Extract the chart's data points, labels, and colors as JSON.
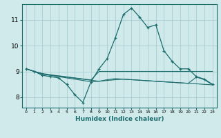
{
  "xlabel": "Humidex (Indice chaleur)",
  "ylabel": "",
  "bg_color": "#d0eaec",
  "grid_color": "#a0c8cc",
  "line_color": "#1a6b6b",
  "xlim": [
    -0.5,
    23.5
  ],
  "ylim": [
    7.6,
    11.6
  ],
  "yticks": [
    8,
    9,
    10,
    11
  ],
  "xticks": [
    0,
    1,
    2,
    3,
    4,
    5,
    6,
    7,
    8,
    9,
    10,
    11,
    12,
    13,
    14,
    15,
    16,
    17,
    18,
    19,
    20,
    21,
    22,
    23
  ],
  "lines": [
    {
      "x": [
        0,
        1,
        2,
        3,
        4,
        5,
        6,
        7,
        8,
        9,
        10,
        11,
        12,
        13,
        14,
        15,
        16,
        17,
        18,
        19,
        20,
        21,
        22,
        23
      ],
      "y": [
        9.1,
        9.0,
        8.9,
        8.85,
        8.8,
        8.75,
        8.7,
        8.65,
        8.6,
        8.62,
        8.65,
        8.68,
        8.7,
        8.68,
        8.66,
        8.64,
        8.62,
        8.6,
        8.58,
        8.56,
        8.54,
        8.52,
        8.5,
        8.48
      ],
      "marker": false
    },
    {
      "x": [
        0,
        1,
        2,
        3,
        4,
        5,
        6,
        7,
        8,
        9,
        10,
        11,
        12,
        13,
        14,
        15,
        16,
        17,
        18,
        19,
        20,
        21,
        22,
        23
      ],
      "y": [
        9.1,
        9.0,
        8.85,
        8.8,
        8.75,
        8.5,
        8.1,
        7.8,
        8.6,
        9.1,
        9.5,
        10.3,
        11.2,
        11.45,
        11.1,
        10.7,
        10.8,
        9.8,
        9.4,
        9.1,
        9.1,
        8.8,
        8.7,
        8.5
      ],
      "marker": true
    },
    {
      "x": [
        0,
        1,
        2,
        3,
        4,
        5,
        6,
        7,
        8,
        9,
        10,
        11,
        12,
        13,
        14,
        15,
        16,
        17,
        18,
        19,
        20,
        21,
        22,
        23
      ],
      "y": [
        9.1,
        9.0,
        8.9,
        8.85,
        8.82,
        8.78,
        8.74,
        8.7,
        8.66,
        8.62,
        8.68,
        8.72,
        8.7,
        8.68,
        8.66,
        8.64,
        8.62,
        8.6,
        8.58,
        8.56,
        8.54,
        8.78,
        8.68,
        8.48
      ],
      "marker": false
    },
    {
      "x": [
        0,
        1,
        2,
        3,
        4,
        5,
        6,
        7,
        8,
        9,
        10,
        11,
        12,
        13,
        14,
        15,
        16,
        17,
        18,
        19,
        20,
        21,
        22,
        23
      ],
      "y": [
        9.1,
        9.0,
        8.92,
        8.87,
        8.83,
        8.79,
        8.75,
        8.71,
        8.67,
        9.0,
        9.0,
        9.0,
        9.0,
        9.0,
        9.0,
        9.0,
        9.0,
        9.0,
        9.0,
        9.0,
        9.0,
        9.0,
        9.0,
        9.0
      ],
      "marker": false
    }
  ]
}
